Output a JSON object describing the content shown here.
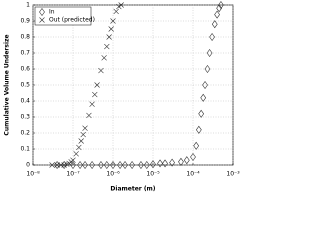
{
  "chart_data": {
    "type": "scatter",
    "xlabel": "Diameter (m)",
    "ylabel": "Cumulative Volume Undersize",
    "xscale": "log",
    "grid": true,
    "legend": "upper-left",
    "xlim": [
      1e-08,
      0.001
    ],
    "xticks": [
      {
        "value": 1e-08,
        "label": "10⁻⁸"
      },
      {
        "value": 1e-07,
        "label": "10⁻⁷"
      },
      {
        "value": 1e-06,
        "label": "10⁻⁶"
      },
      {
        "value": 1e-05,
        "label": "10⁻⁵"
      },
      {
        "value": 0.0001,
        "label": "10⁻⁴"
      },
      {
        "value": 0.001,
        "label": "10⁻³"
      }
    ],
    "ylim": [
      0,
      1
    ],
    "yticks": [
      0,
      0.1,
      0.2,
      0.3,
      0.4,
      0.5,
      0.6,
      0.7,
      0.8,
      0.9,
      1
    ],
    "series": [
      {
        "name": "In",
        "marker": "diamond",
        "color": "#333333",
        "x": [
          4e-08,
          6e-08,
          1e-07,
          1.5e-07,
          2e-07,
          3e-07,
          5e-07,
          7e-07,
          1e-06,
          1.5e-06,
          2e-06,
          3e-06,
          5e-06,
          7e-06,
          1e-05,
          1.5e-05,
          2e-05,
          3e-05,
          5e-05,
          7e-05,
          0.0001,
          0.00012,
          0.00014,
          0.00016,
          0.00018,
          0.0002,
          0.00023,
          0.00026,
          0.0003,
          0.00035,
          0.0004,
          0.00045,
          0.0005
        ],
        "values": [
          0,
          0,
          0,
          0,
          0,
          0,
          0,
          0,
          0,
          0,
          0,
          0,
          0,
          0,
          0.005,
          0.01,
          0.01,
          0.015,
          0.02,
          0.03,
          0.05,
          0.12,
          0.22,
          0.32,
          0.42,
          0.5,
          0.6,
          0.7,
          0.8,
          0.88,
          0.94,
          0.98,
          1
        ]
      },
      {
        "name": "Out (predicted)",
        "marker": "x",
        "color": "#333333",
        "x": [
          3e-08,
          4e-08,
          5e-08,
          6e-08,
          7e-08,
          8e-08,
          9e-08,
          1e-07,
          1.2e-07,
          1.4e-07,
          1.6e-07,
          1.8e-07,
          2e-07,
          2.5e-07,
          3e-07,
          3.5e-07,
          4e-07,
          5e-07,
          6e-07,
          7e-07,
          8e-07,
          9e-07,
          1e-06,
          1.2e-06,
          1.4e-06,
          1.6e-06
        ],
        "values": [
          0,
          0,
          0,
          0,
          0.005,
          0.01,
          0.02,
          0.03,
          0.07,
          0.11,
          0.15,
          0.19,
          0.23,
          0.31,
          0.38,
          0.44,
          0.5,
          0.59,
          0.67,
          0.74,
          0.8,
          0.85,
          0.9,
          0.96,
          0.99,
          1
        ]
      }
    ]
  }
}
